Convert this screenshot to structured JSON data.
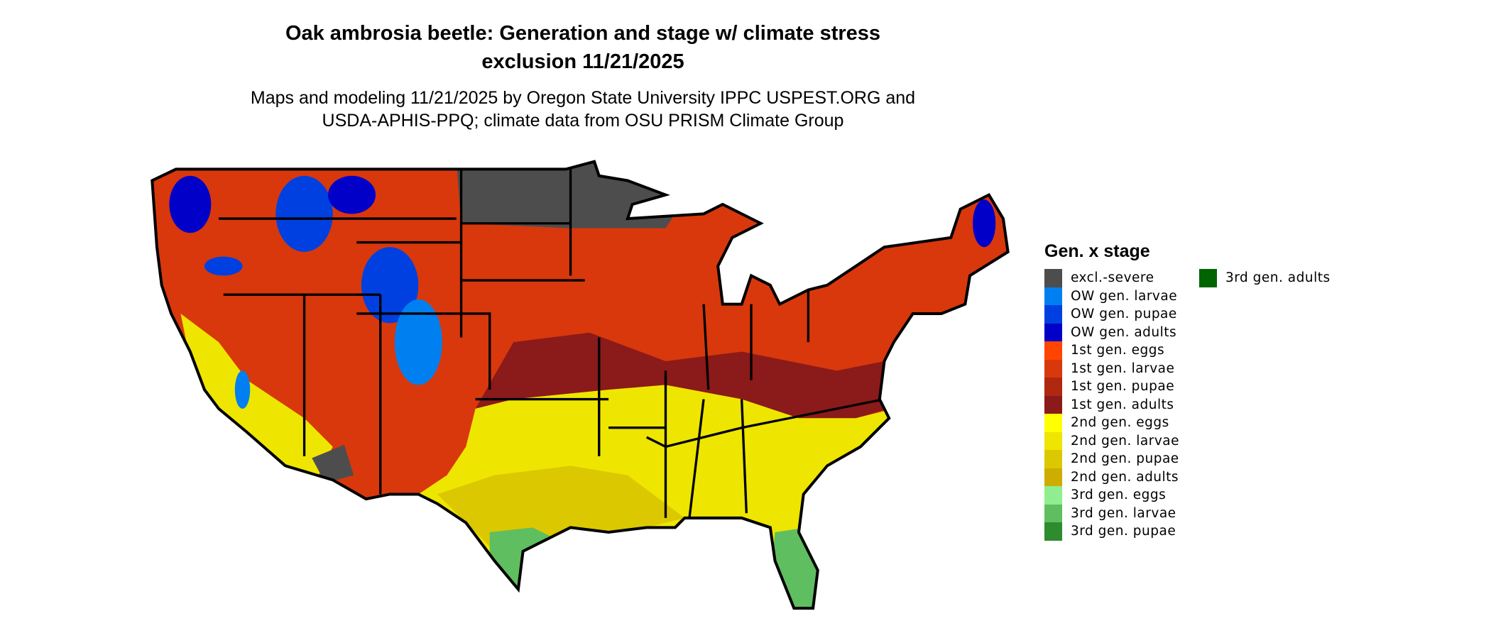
{
  "title_line1": "Oak ambrosia beetle: Generation and stage w/ climate stress",
  "title_line2": "exclusion 11/21/2025",
  "subtitle_line1": "Maps and modeling 11/21/2025 by Oregon State University IPPC USPEST.ORG and",
  "subtitle_line2": "USDA-APHIS-PPQ; climate data from OSU PRISM Climate Group",
  "legend": {
    "title": "Gen. x stage",
    "items": [
      {
        "label": "excl.-severe",
        "color": "#4d4d4d"
      },
      {
        "label": "OW gen. larvae",
        "color": "#0080f0"
      },
      {
        "label": "OW gen. pupae",
        "color": "#0040e0"
      },
      {
        "label": "OW gen. adults",
        "color": "#0000c8"
      },
      {
        "label": "1st gen. eggs",
        "color": "#ff4500"
      },
      {
        "label": "1st gen. larvae",
        "color": "#d8380c"
      },
      {
        "label": "1st gen. pupae",
        "color": "#b02810"
      },
      {
        "label": "1st gen. adults",
        "color": "#8b1a1a"
      },
      {
        "label": "2nd gen. eggs",
        "color": "#ffff00"
      },
      {
        "label": "2nd gen. larvae",
        "color": "#eee600"
      },
      {
        "label": "2nd gen. pupae",
        "color": "#dcc800"
      },
      {
        "label": "2nd gen. adults",
        "color": "#cdad00"
      },
      {
        "label": "3rd gen. eggs",
        "color": "#90ee90"
      },
      {
        "label": "3rd gen. larvae",
        "color": "#5fbe5f"
      },
      {
        "label": "3rd gen. pupae",
        "color": "#2e8b2e"
      },
      {
        "label": "3rd gen. adults",
        "color": "#006400"
      }
    ]
  }
}
